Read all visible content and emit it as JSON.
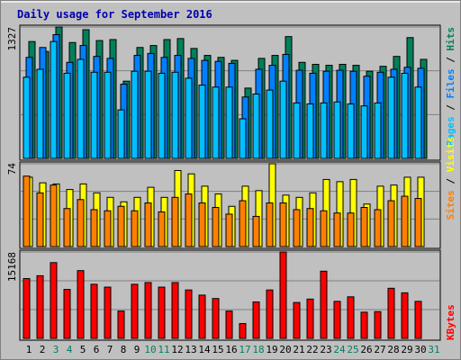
{
  "chart_data": {
    "type": "bar",
    "title": "Daily usage for September 2016",
    "categories": [
      "1",
      "2",
      "3",
      "4",
      "5",
      "6",
      "7",
      "8",
      "9",
      "10",
      "11",
      "12",
      "13",
      "14",
      "15",
      "16",
      "17",
      "18",
      "19",
      "20",
      "21",
      "22",
      "23",
      "24",
      "25",
      "26",
      "27",
      "28",
      "29",
      "30",
      "31"
    ],
    "weekend_days": [
      "3",
      "4",
      "10",
      "11",
      "17",
      "18",
      "24",
      "25",
      "31"
    ],
    "panels": [
      {
        "name": "hits_files_pages",
        "max_label": "1327",
        "ymax": 1327,
        "legend": [
          "Pages",
          "Files",
          "Hits"
        ],
        "series": [
          {
            "name": "Hits",
            "color": "#00805c",
            "values": [
              1180,
              1080,
              1327,
              1170,
              1300,
              1190,
              1200,
              780,
              1120,
              1140,
              1200,
              1210,
              1110,
              1040,
              1020,
              990,
              710,
              1010,
              1040,
              1230,
              970,
              950,
              940,
              950,
              940,
              880,
              930,
              1030,
              1220,
              1000,
              0
            ]
          },
          {
            "name": "Files",
            "color": "#0080ff",
            "values": [
              1020,
              1120,
              1250,
              970,
              1140,
              1030,
              1010,
              750,
              1040,
              1060,
              1020,
              1040,
              1010,
              990,
              980,
              960,
              620,
              900,
              940,
              1050,
              890,
              860,
              880,
              890,
              880,
              830,
              870,
              900,
              920,
              910,
              0
            ]
          },
          {
            "name": "Pages",
            "color": "#00c0ff",
            "values": [
              820,
              900,
              1180,
              860,
              1000,
              870,
              870,
              490,
              880,
              880,
              860,
              870,
              810,
              740,
              720,
              720,
              400,
              650,
              690,
              780,
              560,
              550,
              560,
              570,
              550,
              530,
              560,
              820,
              860,
              720,
              0
            ]
          }
        ]
      },
      {
        "name": "visits_sites",
        "max_label": "74",
        "ymax": 74,
        "legend": [
          "Sites",
          "Visits"
        ],
        "series": [
          {
            "name": "Visits",
            "color": "#ffff00",
            "values": [
              62,
              57,
              56,
              51,
              56,
              48,
              44,
              40,
              44,
              53,
              44,
              68,
              65,
              54,
              47,
              36,
              54,
              50,
              74,
              46,
              44,
              48,
              60,
              58,
              60,
              38,
              54,
              55,
              62,
              62,
              0
            ]
          },
          {
            "name": "Sites",
            "color": "#ff8000",
            "values": [
              63,
              48,
              55,
              34,
              42,
              33,
              32,
              36,
              32,
              39,
              31,
              44,
              47,
              39,
              35,
              29,
              41,
              27,
              39,
              39,
              33,
              34,
              32,
              30,
              30,
              35,
              33,
              41,
              45,
              43,
              0
            ]
          }
        ]
      },
      {
        "name": "kbytes",
        "max_label": "15168",
        "ymax": 15168,
        "legend": [
          "KBytes"
        ],
        "series": [
          {
            "name": "KBytes",
            "color": "#ff0000",
            "values": [
              10500,
              11000,
              13300,
              8600,
              11900,
              9500,
              9000,
              4800,
              9500,
              9800,
              9000,
              9800,
              8500,
              7600,
              7000,
              4800,
              2600,
              6400,
              8500,
              15168,
              6300,
              6900,
              11800,
              6500,
              7300,
              4600,
              4700,
              8800,
              8000,
              6500,
              0
            ]
          }
        ]
      }
    ]
  }
}
